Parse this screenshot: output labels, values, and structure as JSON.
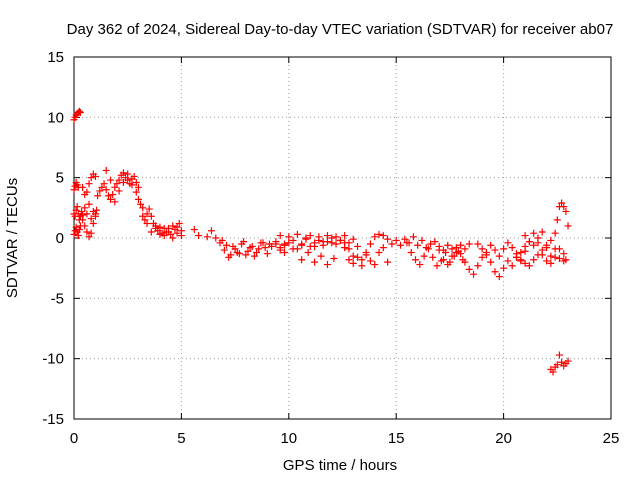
{
  "chart_data": {
    "type": "scatter",
    "title": "Day 362 of 2024, Sidereal Day-to-day VTEC variation (SDTVAR) for receiver ab07",
    "xlabel": "GPS time / hours",
    "ylabel": "SDTVAR / TECUs",
    "xlim": [
      0,
      25
    ],
    "ylim": [
      -15,
      15
    ],
    "xticks": [
      0,
      5,
      10,
      15,
      20,
      25
    ],
    "yticks": [
      -15,
      -10,
      -5,
      0,
      5,
      10,
      15
    ],
    "xtick_labels": [
      "0",
      "5",
      "10",
      "15",
      "20",
      "25"
    ],
    "ytick_labels": [
      "-15",
      "-10",
      "-5",
      "0",
      "5",
      "10",
      "15"
    ],
    "grid": true,
    "marker": "+",
    "color": "#ff0000",
    "series": [
      {
        "name": "SDTVAR",
        "x": [
          0.0,
          0.05,
          0.1,
          0.15,
          0.2,
          0.25,
          0.3,
          0.0,
          0.05,
          0.1,
          0.15,
          0.2,
          0.0,
          0.05,
          0.1,
          0.15,
          0.2,
          0.25,
          0.3,
          0.35,
          0.4,
          0.0,
          0.05,
          0.1,
          0.15,
          0.2,
          0.25,
          0.3,
          0.4,
          0.5,
          0.6,
          0.7,
          0.8,
          0.9,
          1.0,
          0.4,
          0.5,
          0.6,
          0.7,
          0.8,
          0.9,
          1.0,
          0.5,
          0.6,
          0.7,
          0.8,
          0.9,
          1.0,
          1.05,
          1.1,
          1.2,
          1.3,
          1.4,
          1.5,
          1.6,
          1.7,
          1.8,
          1.9,
          2.0,
          2.1,
          2.2,
          2.3,
          2.4,
          2.5,
          2.6,
          2.7,
          2.8,
          2.9,
          3.0,
          1.5,
          1.7,
          1.9,
          2.1,
          2.3,
          2.5,
          2.7,
          2.9,
          3.0,
          3.1,
          3.2,
          3.3,
          3.4,
          3.5,
          3.6,
          3.7,
          3.8,
          3.9,
          4.0,
          4.1,
          4.2,
          4.3,
          4.4,
          4.5,
          4.6,
          4.7,
          4.8,
          4.9,
          5.0,
          3.2,
          3.4,
          3.6,
          3.8,
          4.0,
          4.2,
          4.4,
          4.6,
          4.8,
          5.0,
          5.6,
          5.8,
          6.2,
          6.4,
          6.6,
          6.8,
          7.0,
          7.2,
          7.4,
          7.6,
          7.8,
          8.0,
          8.2,
          8.4,
          8.6,
          8.8,
          9.0,
          9.2,
          9.4,
          9.6,
          9.8,
          6.9,
          7.1,
          7.3,
          7.5,
          7.7,
          7.9,
          8.1,
          8.3,
          8.5,
          8.7,
          8.9,
          9.1,
          9.4,
          9.6,
          9.8,
          10.0,
          10.2,
          10.4,
          10.6,
          10.8,
          11.0,
          11.2,
          11.4,
          11.6,
          11.8,
          12.0,
          12.2,
          12.4,
          12.6,
          12.8,
          13.0,
          9.6,
          9.8,
          10.0,
          10.2,
          10.4,
          10.6,
          10.8,
          11.0,
          11.2,
          11.4,
          11.6,
          11.8,
          12.0,
          12.2,
          12.4,
          12.6,
          10.6,
          10.9,
          11.2,
          11.5,
          11.8,
          12.1,
          12.6,
          12.8,
          13.0,
          13.2,
          13.4,
          13.6,
          13.8,
          14.0,
          14.2,
          14.4,
          14.6,
          12.8,
          13.0,
          13.2,
          13.4,
          13.6,
          13.8,
          14.0,
          14.2,
          14.4,
          14.6,
          14.8,
          15.0,
          15.2,
          15.4,
          15.6,
          15.8,
          16.0,
          16.2,
          16.4,
          16.6,
          16.8,
          17.0,
          17.2,
          17.4,
          17.6,
          17.8,
          18.0,
          18.2,
          18.4,
          15.5,
          15.7,
          15.9,
          16.1,
          16.3,
          16.5,
          16.7,
          16.9,
          17.1,
          17.3,
          17.5,
          17.7,
          17.9,
          18.1,
          17.0,
          17.2,
          17.4,
          17.6,
          17.8,
          18.0,
          18.2,
          18.4,
          18.6,
          18.8,
          19.0,
          19.2,
          19.4,
          19.6,
          19.8,
          20.0,
          20.2,
          20.4,
          20.6,
          20.8,
          21.0,
          18.8,
          19.0,
          19.2,
          19.4,
          19.6,
          19.8,
          20.0,
          20.2,
          20.4,
          20.6,
          20.8,
          21.0,
          21.2,
          21.4,
          21.6,
          21.8,
          22.0,
          22.2,
          22.4,
          22.6,
          22.8,
          20.6,
          20.8,
          21.0,
          21.2,
          21.4,
          21.6,
          21.8,
          22.0,
          22.2,
          22.4,
          22.5,
          22.6,
          22.7,
          22.8,
          22.9,
          23.0,
          21.0,
          21.2,
          21.4,
          21.6,
          21.8,
          22.0,
          22.2,
          22.4,
          22.6,
          22.8,
          22.9,
          22.2,
          22.3,
          22.4,
          22.5,
          22.6,
          22.7,
          22.8,
          22.9,
          23.0
        ],
        "y": [
          9.8,
          10.0,
          10.2,
          10.3,
          10.4,
          10.5,
          10.4,
          4.0,
          4.3,
          4.6,
          4.4,
          4.2,
          2.0,
          1.8,
          2.3,
          2.6,
          2.0,
          1.5,
          1.8,
          2.2,
          1.9,
          0.3,
          0.6,
          0.9,
          0.5,
          0.2,
          0.7,
          1.0,
          4.2,
          3.6,
          3.8,
          4.5,
          5.0,
          5.3,
          5.1,
          1.5,
          1.0,
          0.5,
          0.1,
          0.4,
          1.2,
          2.0,
          2.5,
          2.0,
          2.8,
          1.6,
          2.2,
          1.8,
          2.3,
          3.5,
          3.9,
          4.2,
          4.5,
          4.0,
          3.5,
          3.2,
          3.6,
          4.2,
          4.5,
          4.8,
          5.2,
          5.4,
          5.0,
          4.8,
          4.5,
          4.9,
          5.1,
          4.6,
          4.2,
          5.6,
          4.8,
          3.0,
          3.9,
          4.6,
          5.3,
          4.4,
          3.8,
          3.2,
          2.8,
          2.5,
          1.5,
          2.0,
          2.4,
          1.8,
          1.2,
          0.8,
          0.6,
          0.9,
          0.4,
          0.2,
          0.5,
          0.8,
          0.3,
          0.0,
          0.7,
          0.9,
          1.2,
          0.6,
          1.8,
          1.2,
          0.5,
          1.0,
          0.3,
          0.8,
          0.5,
          1.0,
          0.4,
          0.2,
          0.7,
          0.2,
          0.1,
          0.6,
          0.0,
          -0.4,
          -1.0,
          -1.6,
          -0.7,
          -1.2,
          -0.5,
          -1.4,
          -0.8,
          -1.5,
          -0.9,
          -0.4,
          -1.3,
          -0.7,
          -0.5,
          -1.0,
          -0.6,
          -0.2,
          -0.6,
          -1.4,
          -0.9,
          -1.3,
          -0.3,
          -1.1,
          -0.7,
          -1.2,
          -0.4,
          -0.8,
          -0.5,
          -0.3,
          -0.8,
          -1.2,
          -0.4,
          -0.2,
          -0.9,
          -0.5,
          -0.1,
          -0.7,
          -0.4,
          -0.2,
          -0.6,
          -0.3,
          0.0,
          -0.5,
          -0.2,
          -0.8,
          -0.4,
          -0.1,
          0.2,
          -0.5,
          0.1,
          -0.9,
          0.3,
          -0.6,
          0.0,
          0.2,
          -0.7,
          0.1,
          -0.3,
          0.2,
          -0.4,
          0.1,
          -0.2,
          0.2,
          -1.8,
          -1.2,
          -2.0,
          -1.5,
          -2.2,
          -1.7,
          -0.4,
          -0.9,
          -1.5,
          -0.7,
          -1.8,
          -1.2,
          -0.5,
          0.1,
          0.3,
          0.2,
          -0.1,
          -1.8,
          -2.1,
          -1.6,
          -2.3,
          -1.4,
          -1.9,
          -2.2,
          -1.2,
          -0.8,
          -2.0,
          -0.5,
          -0.2,
          -0.6,
          -0.1,
          -0.4,
          0.1,
          -0.6,
          -0.2,
          -0.8,
          -0.5,
          -0.3,
          -0.7,
          -1.0,
          -0.6,
          -0.9,
          -1.2,
          -0.6,
          -0.9,
          -0.5,
          -0.4,
          -1.2,
          -1.8,
          -2.2,
          -1.5,
          -0.9,
          -1.6,
          -2.3,
          -1.9,
          -1.2,
          -2.0,
          -1.5,
          -1.1,
          -1.8,
          -1.0,
          -1.8,
          -2.2,
          -1.5,
          -0.8,
          -1.3,
          -2.0,
          -2.6,
          -3.0,
          -2.3,
          -1.6,
          -1.2,
          -0.6,
          -1.0,
          -1.5,
          -0.9,
          -0.4,
          -0.8,
          -1.3,
          -1.8,
          -1.1,
          -0.5,
          -0.9,
          -1.4,
          -2.0,
          -2.8,
          -3.2,
          -2.5,
          -1.9,
          -2.3,
          -1.6,
          -1.2,
          -0.7,
          -0.3,
          0.4,
          -0.4,
          -1.4,
          -1.9,
          -2.1,
          -1.6,
          -0.9,
          -1.3,
          -1.6,
          -1.9,
          -2.1,
          -2.3,
          -1.8,
          -1.4,
          -1.0,
          -0.6,
          -0.2,
          0.4,
          1.5,
          2.6,
          2.9,
          2.6,
          2.2,
          1.0,
          0.2,
          -0.3,
          -0.6,
          0.0,
          0.5,
          -0.8,
          -1.5,
          -0.9,
          -1.7,
          -1.9,
          -1.8,
          -10.9,
          -11.1,
          -10.7,
          -10.5,
          -9.7,
          -10.3,
          -10.6,
          -10.4,
          -10.2
        ]
      }
    ]
  }
}
